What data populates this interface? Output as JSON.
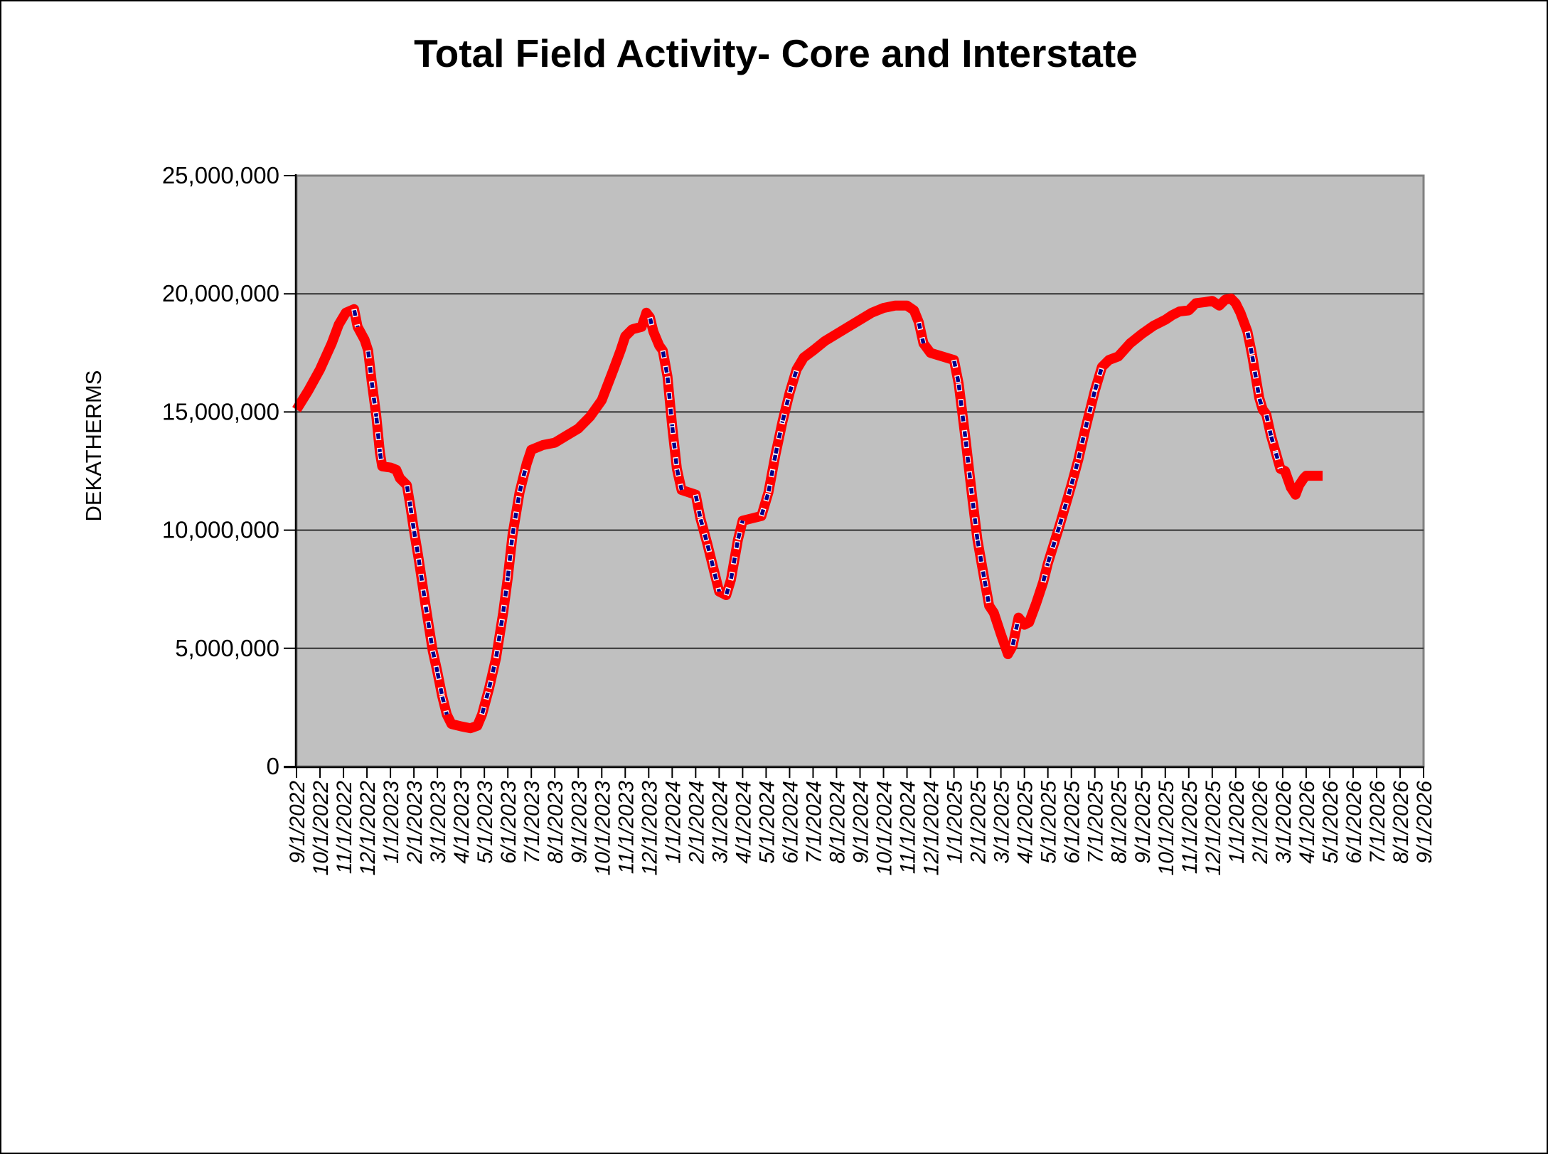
{
  "title": "Total Field Activity- Core and Interstate",
  "y_axis": {
    "label": "DEKATHERMS",
    "ticks": [
      {
        "label": "0",
        "value": 0
      },
      {
        "label": "5,000,000",
        "value": 5000000
      },
      {
        "label": "10,000,000",
        "value": 10000000
      },
      {
        "label": "15,000,000",
        "value": 15000000
      },
      {
        "label": "20,000,000",
        "value": 20000000
      },
      {
        "label": "25,000,000",
        "value": 25000000
      }
    ]
  },
  "x_axis": {
    "labels": [
      "9/1/2022",
      "10/1/2022",
      "11/1/2022",
      "12/1/2022",
      "1/1/2023",
      "2/1/2023",
      "3/1/2023",
      "4/1/2023",
      "5/1/2023",
      "6/1/2023",
      "7/1/2023",
      "8/1/2023",
      "9/1/2023",
      "10/1/2023",
      "11/1/2023",
      "12/1/2023",
      "1/1/2024",
      "2/1/2024",
      "3/1/2024",
      "4/1/2024",
      "5/1/2024",
      "6/1/2024",
      "7/1/2024",
      "8/1/2024",
      "9/1/2024",
      "10/1/2024",
      "11/1/2024",
      "12/1/2024",
      "1/1/2025",
      "2/1/2025",
      "3/1/2025",
      "4/1/2025",
      "5/1/2025",
      "6/1/2025",
      "7/1/2025",
      "8/1/2025",
      "9/1/2025",
      "10/1/2025",
      "11/1/2025",
      "12/1/2025",
      "1/1/2026",
      "2/1/2026",
      "3/1/2026",
      "4/1/2026",
      "5/1/2026",
      "6/1/2026",
      "7/1/2026",
      "8/1/2026",
      "9/1/2026"
    ]
  },
  "colors": {
    "series": "#FF0000",
    "overlay_dash": "#00008B",
    "overlay_gap": "#FFFFFF",
    "plot_bg": "#C0C0C0",
    "plot_border": "#808080",
    "grid": "#303030",
    "axis": "#000000",
    "text": "#000000",
    "page_bg": "#FFFFFF"
  },
  "chart_data": {
    "type": "line",
    "title": "Total Field Activity- Core and Interstate",
    "xlabel": "",
    "ylabel": "DEKATHERMS",
    "ylim": [
      0,
      25000000
    ],
    "grid": "horizontal",
    "legend": "none",
    "x_unit": "months_since_9/1/2022",
    "x_range_months": 48,
    "series": [
      {
        "name": "total-field-activity",
        "style": "thick solid red with navy dashed overlay on steep segments",
        "points": [
          [
            0,
            15100000
          ],
          [
            0.5,
            15900000
          ],
          [
            1,
            16800000
          ],
          [
            1.5,
            17900000
          ],
          [
            1.8,
            18700000
          ],
          [
            2.1,
            19200000
          ],
          [
            2.45,
            19350000
          ],
          [
            2.6,
            18600000
          ],
          [
            2.9,
            18050000
          ],
          [
            3.05,
            17600000
          ],
          [
            3.2,
            16300000
          ],
          [
            3.4,
            14800000
          ],
          [
            3.55,
            13300000
          ],
          [
            3.65,
            12700000
          ],
          [
            4,
            12650000
          ],
          [
            4.25,
            12550000
          ],
          [
            4.4,
            12200000
          ],
          [
            4.7,
            11900000
          ],
          [
            4.85,
            11000000
          ],
          [
            5,
            10000000
          ],
          [
            5.2,
            8800000
          ],
          [
            5.5,
            6800000
          ],
          [
            5.8,
            4900000
          ],
          [
            6,
            4000000
          ],
          [
            6.2,
            3000000
          ],
          [
            6.4,
            2200000
          ],
          [
            6.6,
            1800000
          ],
          [
            7,
            1700000
          ],
          [
            7.4,
            1620000
          ],
          [
            7.7,
            1720000
          ],
          [
            7.9,
            2200000
          ],
          [
            8.2,
            3300000
          ],
          [
            8.5,
            4600000
          ],
          [
            8.8,
            6500000
          ],
          [
            9,
            8000000
          ],
          [
            9.2,
            9800000
          ],
          [
            9.5,
            11600000
          ],
          [
            9.8,
            12800000
          ],
          [
            10,
            13400000
          ],
          [
            10.5,
            13600000
          ],
          [
            11,
            13700000
          ],
          [
            11.5,
            14000000
          ],
          [
            12,
            14300000
          ],
          [
            12.5,
            14800000
          ],
          [
            13,
            15500000
          ],
          [
            13.5,
            16800000
          ],
          [
            13.8,
            17600000
          ],
          [
            14,
            18200000
          ],
          [
            14.3,
            18500000
          ],
          [
            14.7,
            18600000
          ],
          [
            14.9,
            19200000
          ],
          [
            15.05,
            19000000
          ],
          [
            15.2,
            18400000
          ],
          [
            15.45,
            17800000
          ],
          [
            15.6,
            17600000
          ],
          [
            15.8,
            16500000
          ],
          [
            16,
            14400000
          ],
          [
            16.2,
            12600000
          ],
          [
            16.4,
            11700000
          ],
          [
            16.7,
            11600000
          ],
          [
            17,
            11500000
          ],
          [
            17.2,
            10500000
          ],
          [
            17.5,
            9400000
          ],
          [
            17.8,
            8200000
          ],
          [
            18,
            7400000
          ],
          [
            18.3,
            7250000
          ],
          [
            18.5,
            7900000
          ],
          [
            18.8,
            9600000
          ],
          [
            19,
            10400000
          ],
          [
            19.4,
            10500000
          ],
          [
            19.8,
            10600000
          ],
          [
            20.1,
            11600000
          ],
          [
            20.4,
            13200000
          ],
          [
            20.7,
            14600000
          ],
          [
            21,
            15800000
          ],
          [
            21.3,
            16800000
          ],
          [
            21.6,
            17300000
          ],
          [
            22,
            17600000
          ],
          [
            22.5,
            18000000
          ],
          [
            23,
            18300000
          ],
          [
            23.5,
            18600000
          ],
          [
            24,
            18900000
          ],
          [
            24.5,
            19200000
          ],
          [
            25,
            19400000
          ],
          [
            25.5,
            19500000
          ],
          [
            26,
            19500000
          ],
          [
            26.3,
            19300000
          ],
          [
            26.5,
            18800000
          ],
          [
            26.7,
            17900000
          ],
          [
            27,
            17500000
          ],
          [
            27.5,
            17350000
          ],
          [
            28,
            17200000
          ],
          [
            28.2,
            16200000
          ],
          [
            28.5,
            13800000
          ],
          [
            28.8,
            11200000
          ],
          [
            29,
            9600000
          ],
          [
            29.3,
            7900000
          ],
          [
            29.5,
            6800000
          ],
          [
            29.7,
            6500000
          ],
          [
            30,
            5600000
          ],
          [
            30.3,
            4750000
          ],
          [
            30.5,
            5100000
          ],
          [
            30.75,
            6300000
          ],
          [
            31,
            6000000
          ],
          [
            31.2,
            6100000
          ],
          [
            31.5,
            6900000
          ],
          [
            31.8,
            7800000
          ],
          [
            32,
            8600000
          ],
          [
            32.5,
            10200000
          ],
          [
            33,
            11900000
          ],
          [
            33.3,
            13000000
          ],
          [
            33.6,
            14300000
          ],
          [
            34,
            15900000
          ],
          [
            34.3,
            16900000
          ],
          [
            34.6,
            17200000
          ],
          [
            35,
            17350000
          ],
          [
            35.5,
            17900000
          ],
          [
            36,
            18300000
          ],
          [
            36.5,
            18650000
          ],
          [
            37,
            18900000
          ],
          [
            37.3,
            19100000
          ],
          [
            37.6,
            19250000
          ],
          [
            38,
            19300000
          ],
          [
            38.3,
            19600000
          ],
          [
            38.7,
            19650000
          ],
          [
            39,
            19700000
          ],
          [
            39.3,
            19500000
          ],
          [
            39.55,
            19750000
          ],
          [
            39.8,
            19800000
          ],
          [
            40,
            19600000
          ],
          [
            40.2,
            19200000
          ],
          [
            40.5,
            18400000
          ],
          [
            40.7,
            17400000
          ],
          [
            41,
            15600000
          ],
          [
            41.15,
            15100000
          ],
          [
            41.3,
            14900000
          ],
          [
            41.5,
            14000000
          ],
          [
            41.7,
            13300000
          ],
          [
            41.9,
            12600000
          ],
          [
            42.1,
            12500000
          ],
          [
            42.35,
            11800000
          ],
          [
            42.55,
            11500000
          ],
          [
            42.7,
            11900000
          ],
          [
            42.9,
            12200000
          ],
          [
            43,
            12300000
          ],
          [
            43.7,
            12300000
          ]
        ]
      }
    ]
  }
}
